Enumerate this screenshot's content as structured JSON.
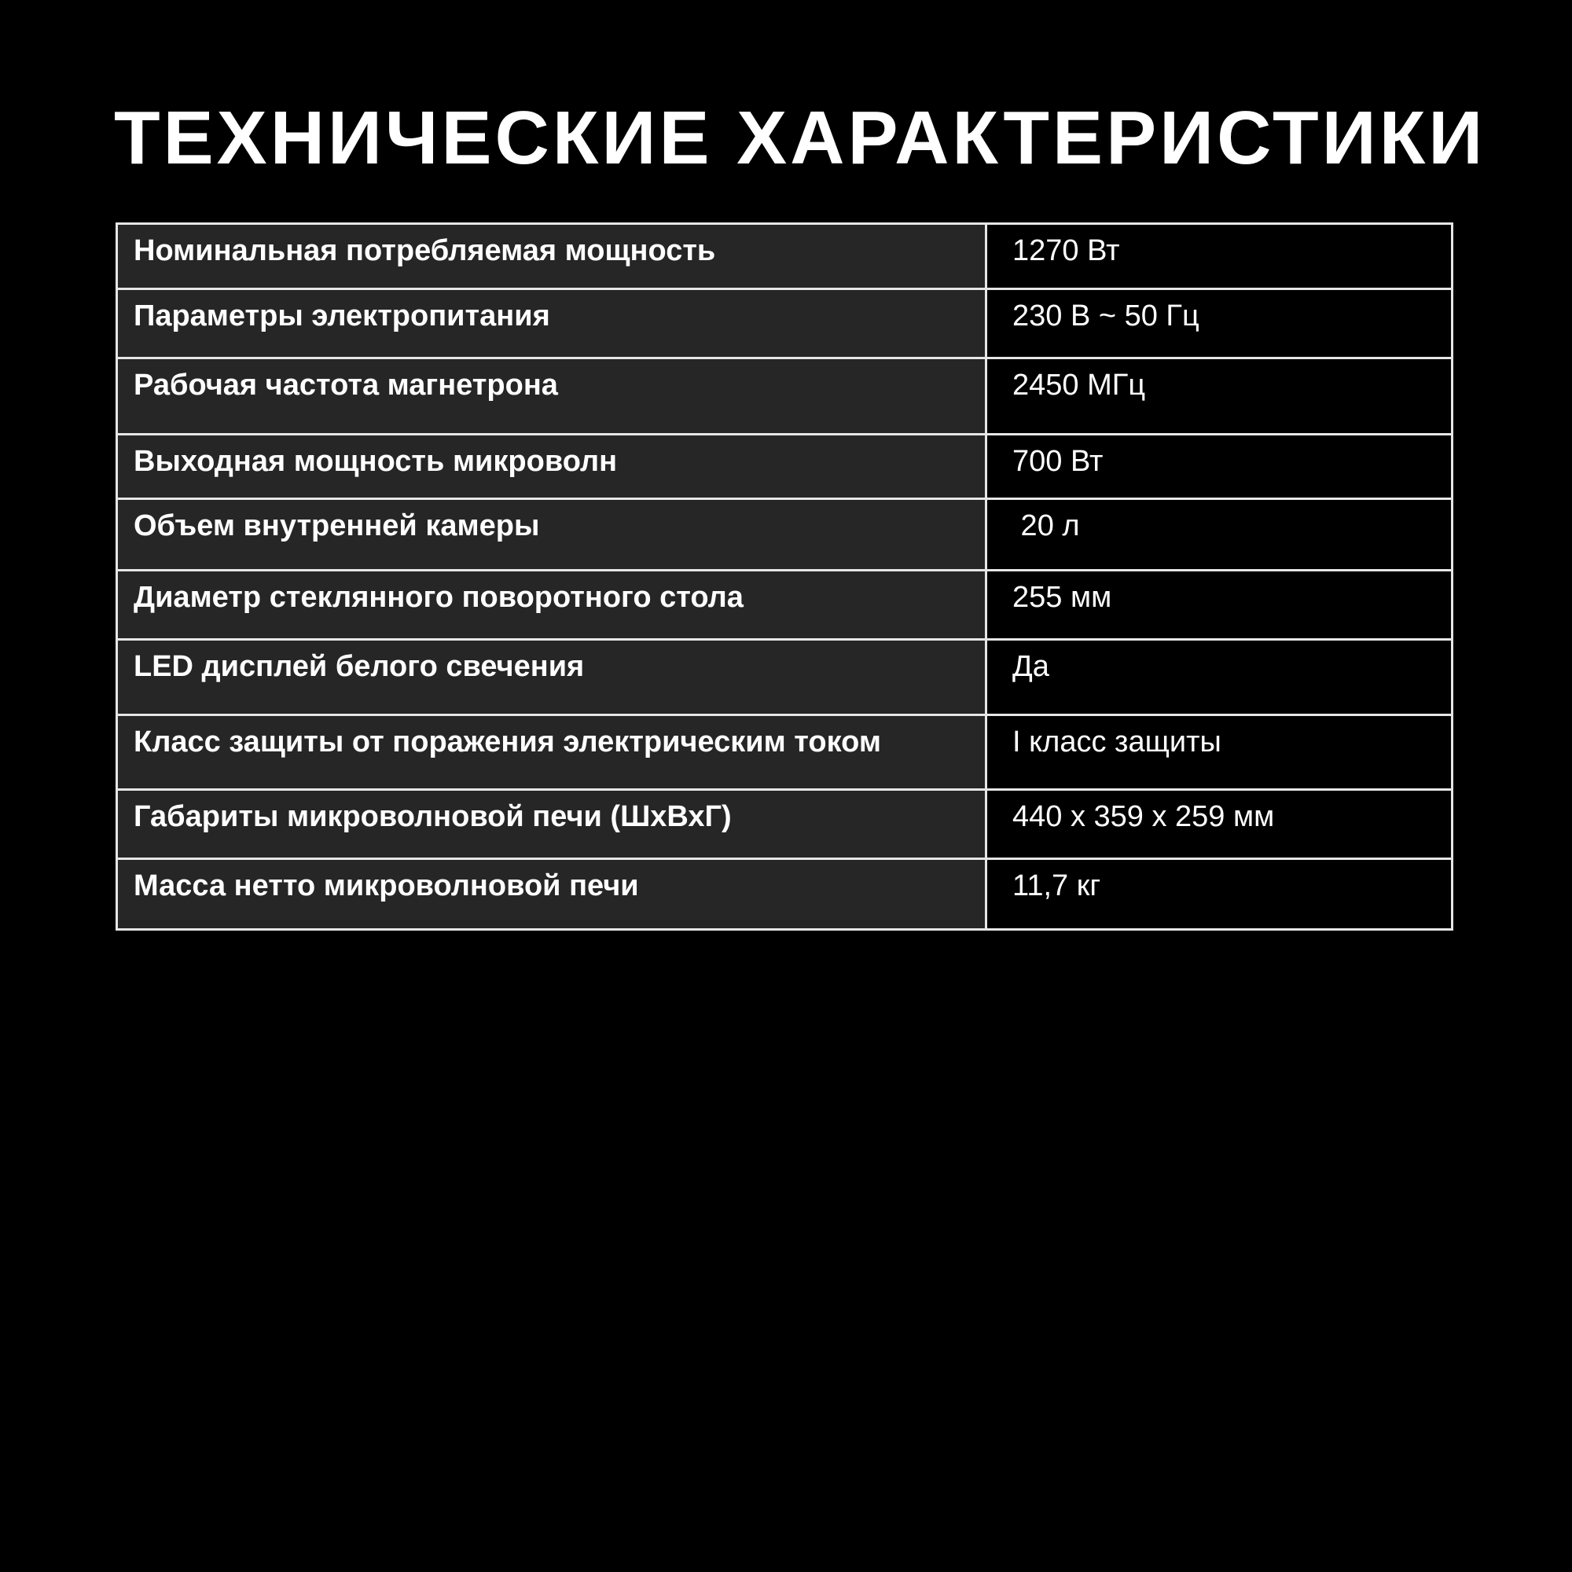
{
  "title": "ТЕХНИЧЕСКИЕ ХАРАКТЕРИСТИКИ",
  "colors": {
    "background": "#000000",
    "label_cell": "#262626",
    "border": "#e6e6e6",
    "text": "#ffffff"
  },
  "rows": [
    {
      "label": "Номинальная потребляемая мощность",
      "value": "1270 Вт"
    },
    {
      "label": "Параметры электропитания",
      "value": "230 В ~ 50 Гц"
    },
    {
      "label": "Рабочая частота магнетрона",
      "value": "2450 МГц"
    },
    {
      "label": "Выходная мощность микроволн",
      "value": "700 Вт"
    },
    {
      "label": "Объем внутренней камеры",
      "value": " 20 л"
    },
    {
      "label": "Диаметр стеклянного поворотного стола",
      "value": "255 мм"
    },
    {
      "label": "LED дисплей белого свечения",
      "value": "Да"
    },
    {
      "label": "Класс защиты от поражения электрическим током",
      "value": "I класс защиты"
    },
    {
      "label": "Габариты микроволновой печи (ШхВхГ)",
      "value": "440 x 359 x 259 мм"
    },
    {
      "label": "Масса нетто микроволновой печи",
      "value": "11,7 кг"
    }
  ]
}
